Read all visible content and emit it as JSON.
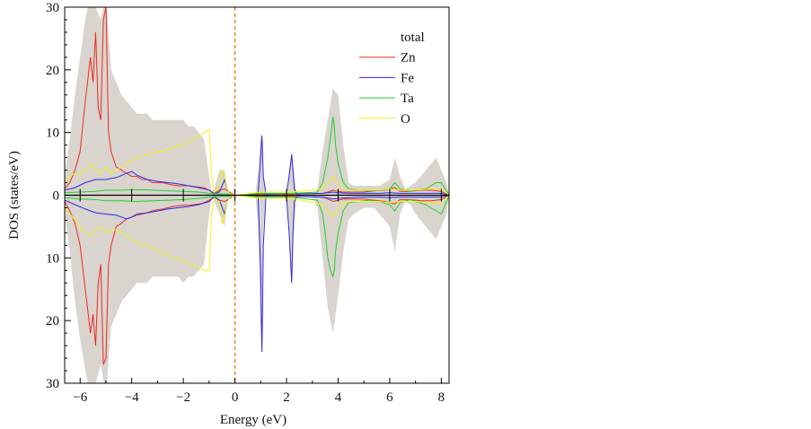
{
  "chart_data": {
    "type": "line",
    "title": "",
    "xlabel": "Energy (eV)",
    "ylabel": "DOS (states/eV)",
    "xlim": [
      -6.6,
      8.3
    ],
    "ylim": [
      -30,
      30
    ],
    "x_ticks": [
      -6,
      -4,
      -2,
      0,
      2,
      4,
      6,
      8
    ],
    "x_tick_labels": [
      "−6",
      "−4",
      "−2",
      "0",
      "2",
      "4",
      "6",
      "8"
    ],
    "y_ticks": [
      -30,
      -20,
      -10,
      0,
      10,
      20,
      30
    ],
    "y_tick_labels": [
      "30",
      "20",
      "10",
      "0",
      "10",
      "20",
      "30"
    ],
    "fermi_level": 0,
    "legend_position": "top-right",
    "grid": false,
    "colors": {
      "total": "#d9d4cd",
      "Zn": "#ee2a24",
      "Fe": "#2a2aee",
      "Ta": "#22d12f",
      "O": "#f2f21e",
      "fermi": "#e58a18",
      "axis": "#000000"
    },
    "series": [
      {
        "name": "total",
        "style": "filled",
        "x": [
          -6.6,
          -6.4,
          -6.2,
          -6.0,
          -5.8,
          -5.6,
          -5.4,
          -5.2,
          -5.0,
          -4.8,
          -4.6,
          -4.4,
          -4.2,
          -4.0,
          -3.8,
          -3.6,
          -3.4,
          -3.2,
          -3.0,
          -2.8,
          -2.6,
          -2.4,
          -2.2,
          -2.0,
          -1.8,
          -1.6,
          -1.4,
          -1.2,
          -1.0,
          -0.9,
          -0.8,
          -0.6,
          -0.4,
          -0.3,
          -0.2,
          -0.1,
          0.0,
          0.6,
          0.8,
          0.9,
          1.0,
          1.1,
          1.2,
          1.4,
          1.8,
          2.0,
          2.1,
          2.2,
          2.3,
          2.4,
          2.6,
          3.0,
          3.2,
          3.4,
          3.6,
          3.8,
          4.0,
          4.2,
          4.4,
          4.6,
          4.8,
          5.0,
          5.2,
          5.4,
          5.6,
          5.8,
          6.0,
          6.2,
          6.4,
          6.6,
          6.8,
          7.0,
          7.2,
          7.4,
          7.6,
          7.8,
          8.0,
          8.2,
          8.3
        ],
        "up": [
          3,
          9,
          16,
          22,
          28,
          32,
          30,
          28,
          32,
          20,
          18,
          16,
          15,
          14,
          13,
          13,
          13,
          12,
          12,
          12,
          12,
          12,
          12,
          12,
          11,
          11,
          10,
          9,
          3,
          0.5,
          1,
          4,
          4,
          1,
          0.3,
          0,
          0,
          0,
          0.5,
          4,
          10,
          3,
          0.3,
          0,
          0,
          0.5,
          4,
          7,
          3,
          0.3,
          0,
          0,
          1,
          7,
          12,
          17,
          16,
          8,
          2,
          1.5,
          1.5,
          1.5,
          1.5,
          1.5,
          1.5,
          2,
          2.5,
          6,
          3,
          1,
          1.5,
          2,
          3,
          4,
          5,
          6,
          4,
          2,
          0
        ],
        "down": [
          3,
          9,
          17,
          23,
          28,
          32,
          30,
          27,
          32,
          21,
          19,
          17,
          16,
          15,
          14,
          14,
          14,
          13,
          13,
          13,
          13,
          13,
          13,
          14,
          13,
          13,
          12,
          11,
          3,
          0.5,
          1,
          3,
          5,
          1,
          0.3,
          0,
          0,
          0,
          0.5,
          5,
          25,
          5,
          0.3,
          0,
          0,
          0.5,
          6,
          14,
          5,
          0.3,
          0,
          0,
          2,
          10,
          18,
          22,
          16,
          9,
          4,
          3,
          2.5,
          2,
          2,
          2,
          3,
          4,
          5,
          9,
          3,
          1,
          1.5,
          3,
          4,
          5,
          6,
          7,
          5,
          3,
          0
        ]
      },
      {
        "name": "Zn",
        "x": [
          -6.6,
          -6.4,
          -6.2,
          -6.0,
          -5.8,
          -5.6,
          -5.5,
          -5.4,
          -5.3,
          -5.2,
          -5.1,
          -5.0,
          -4.9,
          -4.8,
          -4.6,
          -4.4,
          -4.2,
          -4.0,
          -3.8,
          -3.6,
          -3.4,
          -3.2,
          -3.0,
          -2.8,
          -2.6,
          -2.4,
          -2.2,
          -2.0,
          -1.8,
          -1.6,
          -1.4,
          -1.2,
          -1.0,
          -0.8,
          -0.6,
          -0.4,
          -0.2,
          0.0,
          1.0,
          2.2,
          3.4,
          3.6,
          3.8,
          4.0,
          4.2,
          4.6,
          5.0,
          5.4,
          5.8,
          6.0,
          6.2,
          6.4,
          6.8,
          7.2,
          7.6,
          8.0,
          8.3
        ],
        "up": [
          1.0,
          2.0,
          4.0,
          7.0,
          15.0,
          22.0,
          18.0,
          26.0,
          14.0,
          12.0,
          28.0,
          30.0,
          10.0,
          7.0,
          4.5,
          4.0,
          3.5,
          3.0,
          3.0,
          2.5,
          2.5,
          2.0,
          2.0,
          2.0,
          1.8,
          1.6,
          1.5,
          1.5,
          1.5,
          1.4,
          1.3,
          1.2,
          0.8,
          0.3,
          0.8,
          1.0,
          0.5,
          0.0,
          0.2,
          0.2,
          0.3,
          0.5,
          0.8,
          0.6,
          0.5,
          0.5,
          0.5,
          0.7,
          0.8,
          1.0,
          1.2,
          0.6,
          0.6,
          0.8,
          0.8,
          0.6,
          0.0
        ],
        "down": [
          1.0,
          2.5,
          4.5,
          8.0,
          15.0,
          22.0,
          19.0,
          24.0,
          14.0,
          11.0,
          27.0,
          26.0,
          11.0,
          8.0,
          5.0,
          4.5,
          3.8,
          3.5,
          3.2,
          3.0,
          2.8,
          2.5,
          2.3,
          2.2,
          2.0,
          1.8,
          1.7,
          1.6,
          1.6,
          1.5,
          1.4,
          1.2,
          0.8,
          0.3,
          0.8,
          1.0,
          0.5,
          0.0,
          0.2,
          0.2,
          0.3,
          0.6,
          1.0,
          0.8,
          0.6,
          0.6,
          0.6,
          0.8,
          1.0,
          1.2,
          1.4,
          0.7,
          0.7,
          0.9,
          0.9,
          0.7,
          0.0
        ]
      },
      {
        "name": "Fe",
        "x": [
          -6.6,
          -6.2,
          -5.8,
          -5.4,
          -5.0,
          -4.6,
          -4.2,
          -4.0,
          -3.8,
          -3.4,
          -3.0,
          -2.6,
          -2.2,
          -1.8,
          -1.4,
          -1.0,
          -0.8,
          -0.6,
          -0.4,
          -0.3,
          -0.2,
          0.0,
          0.9,
          1.0,
          1.05,
          1.1,
          1.2,
          2.0,
          2.1,
          2.2,
          2.25,
          2.3,
          2.4,
          3.4,
          3.8,
          4.0,
          4.4,
          5.0,
          5.6,
          6.0,
          6.4,
          7.0,
          7.6,
          8.0,
          8.3
        ],
        "up": [
          0.8,
          1.2,
          2.0,
          2.5,
          2.5,
          2.8,
          3.5,
          3.8,
          3.2,
          2.5,
          2.2,
          2.0,
          1.8,
          1.5,
          1.2,
          0.8,
          0.2,
          0.5,
          2.5,
          1.0,
          0.3,
          0.0,
          0.3,
          6.0,
          9.5,
          3.0,
          0.2,
          0.3,
          3.0,
          6.5,
          4.0,
          1.0,
          0.2,
          0.3,
          0.5,
          0.4,
          0.3,
          0.3,
          0.3,
          0.4,
          0.3,
          0.3,
          0.3,
          0.3,
          0.0
        ],
        "down": [
          0.8,
          1.5,
          2.2,
          2.8,
          3.0,
          3.2,
          3.8,
          3.5,
          3.0,
          2.8,
          2.5,
          2.2,
          2.0,
          1.8,
          1.5,
          1.0,
          0.2,
          0.8,
          3.0,
          1.0,
          0.3,
          0.0,
          0.3,
          12.0,
          25.0,
          8.0,
          0.2,
          0.3,
          6.0,
          14.0,
          6.0,
          1.0,
          0.2,
          0.3,
          0.6,
          0.5,
          0.4,
          0.3,
          0.3,
          0.4,
          0.3,
          0.3,
          0.3,
          0.3,
          0.0
        ]
      },
      {
        "name": "Ta",
        "x": [
          -6.6,
          -6.0,
          -5.4,
          -5.0,
          -4.4,
          -3.8,
          -3.2,
          -2.6,
          -2.0,
          -1.4,
          -1.0,
          -0.6,
          -0.2,
          0.0,
          1.0,
          2.2,
          3.2,
          3.4,
          3.5,
          3.6,
          3.7,
          3.8,
          3.85,
          3.9,
          4.0,
          4.2,
          4.4,
          4.8,
          5.2,
          5.6,
          6.0,
          6.2,
          6.4,
          6.8,
          7.0,
          7.4,
          7.8,
          8.0,
          8.3
        ],
        "up": [
          0.4,
          0.5,
          0.6,
          0.8,
          0.8,
          0.9,
          0.8,
          0.7,
          0.6,
          0.5,
          0.3,
          0.2,
          0.2,
          0.0,
          0.3,
          0.3,
          0.5,
          2.0,
          4.0,
          6.0,
          9.0,
          12.5,
          11.0,
          8.0,
          5.0,
          2.0,
          1.0,
          0.8,
          0.7,
          0.8,
          1.0,
          2.0,
          1.0,
          0.6,
          0.8,
          1.0,
          2.0,
          2.0,
          0.0
        ],
        "down": [
          0.4,
          0.6,
          0.7,
          0.9,
          0.9,
          1.0,
          0.9,
          0.8,
          0.7,
          0.5,
          0.3,
          0.2,
          0.2,
          0.0,
          0.3,
          0.3,
          0.8,
          3.0,
          6.0,
          10.0,
          12.0,
          13.0,
          12.0,
          9.0,
          6.0,
          2.5,
          1.2,
          1.0,
          0.8,
          1.0,
          1.5,
          2.5,
          1.2,
          0.7,
          1.0,
          1.5,
          2.5,
          3.0,
          0.0
        ]
      },
      {
        "name": "O",
        "x": [
          -6.6,
          -6.4,
          -6.2,
          -6.0,
          -5.8,
          -5.6,
          -5.4,
          -5.2,
          -5.0,
          -4.8,
          -4.6,
          -4.4,
          -4.2,
          -4.0,
          -3.8,
          -3.6,
          -3.4,
          -3.2,
          -3.0,
          -2.8,
          -2.6,
          -2.4,
          -2.2,
          -2.0,
          -1.8,
          -1.6,
          -1.4,
          -1.2,
          -1.0,
          -0.9,
          -0.8,
          -0.6,
          -0.5,
          -0.4,
          -0.3,
          -0.2,
          0.0,
          1.0,
          2.2,
          3.4,
          3.6,
          3.8,
          4.0,
          4.2,
          4.6,
          5.0,
          5.6,
          6.0,
          6.4,
          7.0,
          7.6,
          8.0,
          8.3
        ],
        "up": [
          2.0,
          3.0,
          3.5,
          3.5,
          4.0,
          5.0,
          4.0,
          3.5,
          4.5,
          3.5,
          4.0,
          4.5,
          5.0,
          5.5,
          6.0,
          6.2,
          6.5,
          6.8,
          7.0,
          7.0,
          7.5,
          7.5,
          8.0,
          8.0,
          8.5,
          9.0,
          9.5,
          10.0,
          10.5,
          3.0,
          0.5,
          1.0,
          4.0,
          3.0,
          1.0,
          0.3,
          0.0,
          0.5,
          0.5,
          1.0,
          2.0,
          3.0,
          1.5,
          1.0,
          0.8,
          0.8,
          0.8,
          1.0,
          0.8,
          0.8,
          1.0,
          1.0,
          0.0
        ],
        "down": [
          2.0,
          3.0,
          4.0,
          5.0,
          6.0,
          6.5,
          5.5,
          5.0,
          6.0,
          5.5,
          5.5,
          6.0,
          6.5,
          7.0,
          7.5,
          8.0,
          8.0,
          8.5,
          9.0,
          9.0,
          9.5,
          10.0,
          10.0,
          10.5,
          11.0,
          11.0,
          11.5,
          12.0,
          12.0,
          3.0,
          0.5,
          1.0,
          4.5,
          3.5,
          1.0,
          0.3,
          0.0,
          0.5,
          0.5,
          1.5,
          2.5,
          3.5,
          2.0,
          1.2,
          1.0,
          1.0,
          1.0,
          1.2,
          1.0,
          1.0,
          1.2,
          1.2,
          0.0
        ]
      }
    ]
  }
}
